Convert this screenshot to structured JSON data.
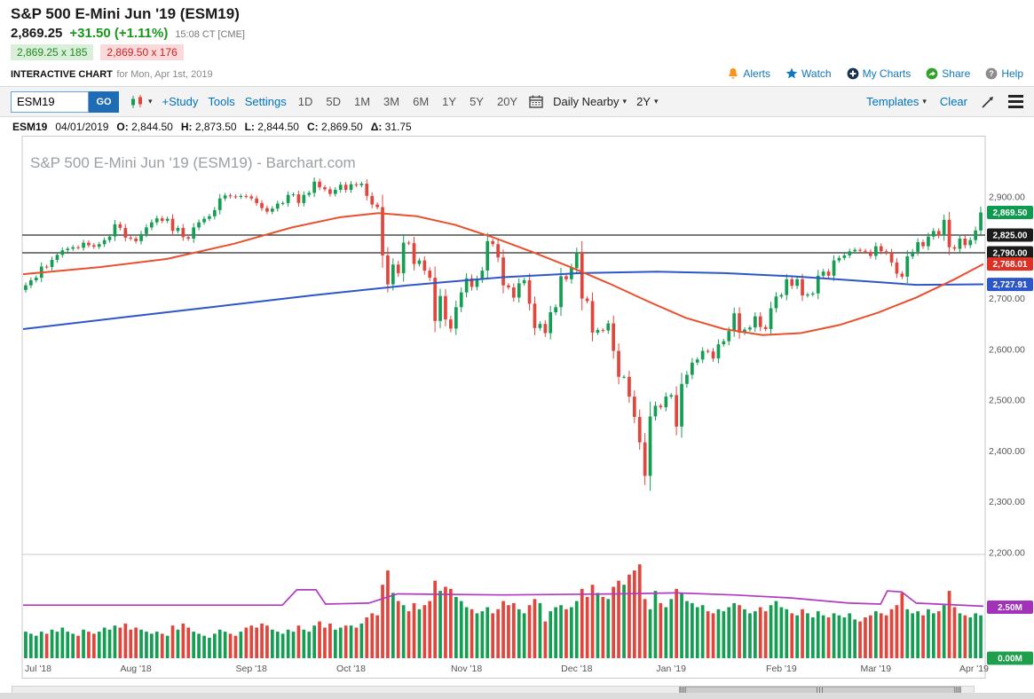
{
  "quote": {
    "title": "S&P 500 E-Mini Jun '19 (ESM19)",
    "last": "2,869.25",
    "change": "+31.50 (+1.11%)",
    "time": "15:08 CT [CME]",
    "bid": "2,869.25 x 185",
    "ask": "2,869.50 x 176"
  },
  "subheader": {
    "label": "INTERACTIVE CHART",
    "date_text": "for Mon, Apr 1st, 2019",
    "links": [
      {
        "label": "Alerts",
        "icon": "bell-icon",
        "color": "#f7941e"
      },
      {
        "label": "Watch",
        "icon": "star-icon",
        "color": "#1078bc"
      },
      {
        "label": "My Charts",
        "icon": "plus-circle-icon",
        "color": "#16324f"
      },
      {
        "label": "Share",
        "icon": "share-circle-icon",
        "color": "#33a02c"
      },
      {
        "label": "Help",
        "icon": "question-circle-icon",
        "color": "#8c8c8c"
      }
    ]
  },
  "toolbar": {
    "symbol_value": "ESM19",
    "go_label": "GO",
    "links": [
      "+Study",
      "Tools",
      "Settings"
    ],
    "ranges": [
      "1D",
      "5D",
      "1M",
      "3M",
      "6M",
      "1Y",
      "5Y",
      "20Y"
    ],
    "frequency": "Daily Nearby",
    "span": "2Y",
    "templates_label": "Templates",
    "clear_label": "Clear"
  },
  "info_bar": {
    "symbol": "ESM19",
    "date": "04/01/2019",
    "fields": [
      {
        "label": "O:",
        "value": "2,844.50"
      },
      {
        "label": "H:",
        "value": "2,873.50"
      },
      {
        "label": "L:",
        "value": "2,844.50"
      },
      {
        "label": "C:",
        "value": "2,869.50"
      },
      {
        "label": "Δ:",
        "value": "31.75"
      }
    ]
  },
  "chart_data": {
    "type": "candlestick",
    "title": "S&P 500 E-Mini Jun '19 (ESM19) - Barchart.com",
    "x_tick_labels": [
      "Jul '18",
      "Aug '18",
      "Sep '18",
      "Oct '18",
      "Nov '18",
      "Dec '18",
      "Jan '19",
      "Feb '19",
      "Mar '19",
      "Apr '19"
    ],
    "x_tick_index": [
      0,
      21,
      43,
      62,
      84,
      105,
      123,
      144,
      162,
      182
    ],
    "y_ticks": [
      "2,900.00",
      "2,700.00",
      "2,600.00",
      "2,500.00",
      "2,400.00",
      "2,300.00",
      "2,200.00"
    ],
    "y_tick_values": [
      2900,
      2700,
      2600,
      2500,
      2400,
      2300,
      2200
    ],
    "price_range": [
      2200,
      3010
    ],
    "volume_range_m": [
      0,
      5
    ],
    "h_lines": [
      2825,
      2790
    ],
    "badges": [
      {
        "label": "2,869.50",
        "value": 2869.5,
        "color": "#0f9b4f"
      },
      {
        "label": "2,825.00",
        "value": 2825,
        "color": "#1b1b1b"
      },
      {
        "label": "2,790.00",
        "value": 2790,
        "color": "#1b1b1b"
      },
      {
        "label": "2,768.01",
        "value": 2768.01,
        "color": "#dd3125"
      },
      {
        "label": "2,727.91",
        "value": 2727.91,
        "color": "#2d56c8"
      }
    ],
    "volume_ticks": [
      {
        "label": "2.50M",
        "value": 2.5,
        "color": "#a233b8"
      },
      {
        "label": "0.00M",
        "value": 0,
        "color": "#1f9e4c"
      }
    ],
    "colors": {
      "up": "#169d54",
      "down": "#e2453c",
      "ma_fast": "#e8502e",
      "ma_slow": "#2d56c8",
      "vol_avg": "#b03bbf",
      "h_line": "#2b2b2b"
    },
    "days": [
      [
        2726,
        1.3
      ],
      [
        2736,
        1.2
      ],
      [
        2741,
        1.1
      ],
      [
        2763,
        1.3
      ],
      [
        2762,
        1.2
      ],
      [
        2776,
        1.4
      ],
      [
        2786,
        1.3
      ],
      [
        2795,
        1.5
      ],
      [
        2798,
        1.3
      ],
      [
        2801,
        1.2
      ],
      [
        2800,
        1.1
      ],
      [
        2810,
        1.4
      ],
      [
        2805,
        1.3
      ],
      [
        2802,
        1.2
      ],
      [
        2807,
        1.3
      ],
      [
        2815,
        1.5
      ],
      [
        2822,
        1.4
      ],
      [
        2846,
        1.6
      ],
      [
        2839,
        1.5
      ],
      [
        2820,
        1.7
      ],
      [
        2818,
        1.4
      ],
      [
        2813,
        1.5
      ],
      [
        2827,
        1.4
      ],
      [
        2840,
        1.3
      ],
      [
        2850,
        1.2
      ],
      [
        2858,
        1.3
      ],
      [
        2853,
        1.2
      ],
      [
        2857,
        1.1
      ],
      [
        2833,
        1.6
      ],
      [
        2839,
        1.4
      ],
      [
        2821,
        1.7
      ],
      [
        2818,
        1.5
      ],
      [
        2840,
        1.3
      ],
      [
        2850,
        1.2
      ],
      [
        2857,
        1.1
      ],
      [
        2862,
        1.0
      ],
      [
        2874,
        1.2
      ],
      [
        2897,
        1.4
      ],
      [
        2903,
        1.3
      ],
      [
        2901,
        1.2
      ],
      [
        2900,
        1.1
      ],
      [
        2902,
        1.3
      ],
      [
        2901,
        1.5
      ],
      [
        2897,
        1.6
      ],
      [
        2888,
        1.5
      ],
      [
        2878,
        1.7
      ],
      [
        2871,
        1.6
      ],
      [
        2877,
        1.4
      ],
      [
        2887,
        1.3
      ],
      [
        2888,
        1.2
      ],
      [
        2904,
        1.4
      ],
      [
        2905,
        1.3
      ],
      [
        2888,
        1.6
      ],
      [
        2904,
        1.4
      ],
      [
        2908,
        1.3
      ],
      [
        2930,
        1.6
      ],
      [
        2919,
        1.8
      ],
      [
        2915,
        1.5
      ],
      [
        2906,
        1.7
      ],
      [
        2914,
        1.4
      ],
      [
        2924,
        1.5
      ],
      [
        2914,
        1.6
      ],
      [
        2925,
        1.6
      ],
      [
        2923,
        1.5
      ],
      [
        2926,
        1.7
      ],
      [
        2902,
        2.0
      ],
      [
        2885,
        2.2
      ],
      [
        2880,
        2.1
      ],
      [
        2785,
        3.6
      ],
      [
        2728,
        4.3
      ],
      [
        2767,
        3.2
      ],
      [
        2750,
        2.8
      ],
      [
        2810,
        2.6
      ],
      [
        2809,
        2.3
      ],
      [
        2768,
        2.7
      ],
      [
        2775,
        2.4
      ],
      [
        2755,
        2.6
      ],
      [
        2741,
        2.8
      ],
      [
        2656,
        3.8
      ],
      [
        2705,
        3.3
      ],
      [
        2659,
        3.5
      ],
      [
        2641,
        3.4
      ],
      [
        2683,
        3.0
      ],
      [
        2712,
        2.8
      ],
      [
        2740,
        2.5
      ],
      [
        2723,
        2.4
      ],
      [
        2738,
        2.2
      ],
      [
        2755,
        2.3
      ],
      [
        2813,
        2.5
      ],
      [
        2807,
        2.2
      ],
      [
        2781,
        2.4
      ],
      [
        2726,
        2.8
      ],
      [
        2722,
        2.6
      ],
      [
        2702,
        2.7
      ],
      [
        2730,
        2.4
      ],
      [
        2736,
        2.2
      ],
      [
        2690,
        2.6
      ],
      [
        2642,
        2.9
      ],
      [
        2650,
        2.7
      ],
      [
        2632,
        1.8
      ],
      [
        2673,
        2.3
      ],
      [
        2683,
        2.5
      ],
      [
        2744,
        2.6
      ],
      [
        2738,
        2.4
      ],
      [
        2760,
        2.5
      ],
      [
        2790,
        2.8
      ],
      [
        2700,
        3.4
      ],
      [
        2695,
        3.0
      ],
      [
        2633,
        3.6
      ],
      [
        2638,
        3.2
      ],
      [
        2637,
        3.0
      ],
      [
        2651,
        2.9
      ],
      [
        2597,
        3.5
      ],
      [
        2546,
        3.8
      ],
      [
        2546,
        3.6
      ],
      [
        2507,
        4.1
      ],
      [
        2467,
        4.3
      ],
      [
        2417,
        4.6
      ],
      [
        2351,
        2.9
      ],
      [
        2468,
        2.4
      ],
      [
        2489,
        3.3
      ],
      [
        2486,
        2.7
      ],
      [
        2507,
        2.5
      ],
      [
        2510,
        2.9
      ],
      [
        2448,
        3.4
      ],
      [
        2532,
        3.2
      ],
      [
        2550,
        2.8
      ],
      [
        2574,
        2.7
      ],
      [
        2580,
        2.5
      ],
      [
        2597,
        2.6
      ],
      [
        2596,
        2.3
      ],
      [
        2582,
        2.2
      ],
      [
        2610,
        2.4
      ],
      [
        2616,
        2.3
      ],
      [
        2636,
        2.5
      ],
      [
        2671,
        2.7
      ],
      [
        2633,
        2.6
      ],
      [
        2639,
        2.4
      ],
      [
        2643,
        2.2
      ],
      [
        2665,
        2.3
      ],
      [
        2644,
        2.5
      ],
      [
        2640,
        2.3
      ],
      [
        2681,
        2.6
      ],
      [
        2704,
        2.8
      ],
      [
        2707,
        2.5
      ],
      [
        2738,
        2.4
      ],
      [
        2725,
        2.2
      ],
      [
        2738,
        2.1
      ],
      [
        2706,
        2.4
      ],
      [
        2708,
        2.2
      ],
      [
        2710,
        2.0
      ],
      [
        2745,
        2.3
      ],
      [
        2753,
        2.1
      ],
      [
        2745,
        2.0
      ],
      [
        2775,
        2.2
      ],
      [
        2780,
        2.1
      ],
      [
        2785,
        2.0
      ],
      [
        2793,
        2.2
      ],
      [
        2796,
        1.9
      ],
      [
        2794,
        1.8
      ],
      [
        2792,
        2.0
      ],
      [
        2784,
        2.1
      ],
      [
        2803,
        2.3
      ],
      [
        2793,
        2.2
      ],
      [
        2790,
        2.1
      ],
      [
        2771,
        2.4
      ],
      [
        2749,
        2.6
      ],
      [
        2743,
        3.2
      ],
      [
        2783,
        2.4
      ],
      [
        2792,
        2.2
      ],
      [
        2811,
        2.3
      ],
      [
        2803,
        2.1
      ],
      [
        2822,
        2.4
      ],
      [
        2833,
        2.2
      ],
      [
        2824,
        2.3
      ],
      [
        2855,
        2.6
      ],
      [
        2801,
        3.3
      ],
      [
        2798,
        2.5
      ],
      [
        2818,
        2.2
      ],
      [
        2805,
        2.1
      ],
      [
        2815,
        2.0
      ],
      [
        2834,
        2.2
      ],
      [
        2869.5,
        2.1
      ]
    ],
    "ma_red": [
      [
        0,
        2748
      ],
      [
        0.08,
        2762
      ],
      [
        0.15,
        2778
      ],
      [
        0.22,
        2808
      ],
      [
        0.28,
        2840
      ],
      [
        0.33,
        2860
      ],
      [
        0.37,
        2868
      ],
      [
        0.41,
        2862
      ],
      [
        0.45,
        2845
      ],
      [
        0.49,
        2820
      ],
      [
        0.53,
        2792
      ],
      [
        0.57,
        2762
      ],
      [
        0.61,
        2730
      ],
      [
        0.65,
        2695
      ],
      [
        0.69,
        2662
      ],
      [
        0.73,
        2640
      ],
      [
        0.77,
        2628
      ],
      [
        0.81,
        2632
      ],
      [
        0.85,
        2648
      ],
      [
        0.89,
        2672
      ],
      [
        0.93,
        2702
      ],
      [
        0.97,
        2738
      ],
      [
        1,
        2768
      ]
    ],
    "ma_blue": [
      [
        0,
        2640
      ],
      [
        0.1,
        2662
      ],
      [
        0.2,
        2684
      ],
      [
        0.3,
        2706
      ],
      [
        0.4,
        2726
      ],
      [
        0.5,
        2742
      ],
      [
        0.58,
        2750
      ],
      [
        0.66,
        2753
      ],
      [
        0.73,
        2750
      ],
      [
        0.8,
        2744
      ],
      [
        0.87,
        2735
      ],
      [
        0.93,
        2727
      ],
      [
        1,
        2728
      ]
    ],
    "vol_avg": [
      [
        0,
        2.6
      ],
      [
        0.27,
        2.6
      ],
      [
        0.285,
        3.35
      ],
      [
        0.305,
        3.35
      ],
      [
        0.315,
        2.65
      ],
      [
        0.36,
        2.7
      ],
      [
        0.39,
        3.15
      ],
      [
        0.5,
        3.1
      ],
      [
        0.62,
        3.15
      ],
      [
        0.68,
        3.2
      ],
      [
        0.74,
        3.1
      ],
      [
        0.8,
        2.95
      ],
      [
        0.86,
        2.7
      ],
      [
        0.893,
        2.65
      ],
      [
        0.9,
        3.3
      ],
      [
        0.915,
        3.25
      ],
      [
        0.93,
        2.7
      ],
      [
        1,
        2.55
      ]
    ]
  }
}
